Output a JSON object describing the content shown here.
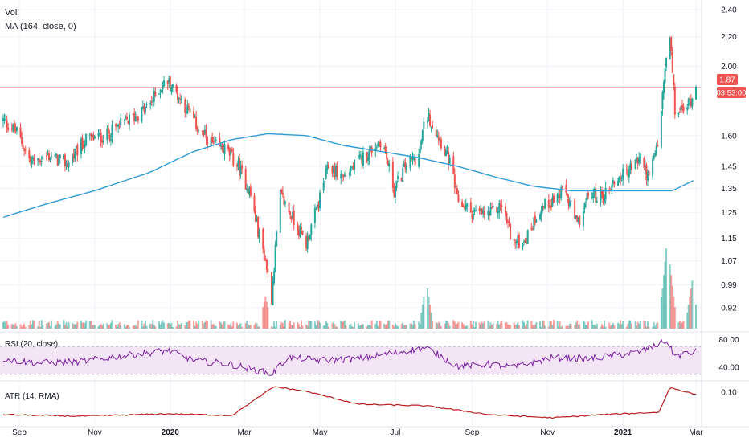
{
  "colors": {
    "up": "#26a69a",
    "down": "#ef5350",
    "ma": "#2e9bd6",
    "rsi": "#7b1fa2",
    "rsi_band": "#f3e5f5",
    "atr": "#b71c1c",
    "price_line": "#ef5350",
    "grid": "#f0f3fa",
    "axis_text": "#131722"
  },
  "legend": {
    "vol": "Vol",
    "ma": "MA (164, close, 0)",
    "rsi": "RSI (20, close)",
    "atr": "ATR (14, RMA)"
  },
  "price_badge": {
    "price": "1.87",
    "countdown": "03:53:00"
  },
  "chart_data": [
    {
      "type": "candlestick",
      "pane": "price",
      "y_ticks": [
        "2.40",
        "2.20",
        "2.00",
        "1.60",
        "1.45",
        "1.35",
        "1.25",
        "1.15",
        "1.07",
        "0.99",
        "0.92"
      ],
      "y_scale": "log",
      "ylim": [
        0.88,
        2.45
      ],
      "x_ticks": [
        "Sep",
        "Nov",
        "2020",
        "Mar",
        "May",
        "Jul",
        "Sep",
        "Nov",
        "2021",
        "Mar"
      ],
      "x_tick_dates": [
        "2019-09",
        "2019-11",
        "2020-01",
        "2020-03",
        "2020-05",
        "2020-07",
        "2020-09",
        "2020-11",
        "2021-01",
        "2021-03"
      ],
      "last_price": 1.87,
      "close_path": [
        [
          "2019-08-19",
          1.68
        ],
        [
          "2019-08-30",
          1.62
        ],
        [
          "2019-09-10",
          1.47
        ],
        [
          "2019-09-25",
          1.5
        ],
        [
          "2019-10-10",
          1.46
        ],
        [
          "2019-10-25",
          1.58
        ],
        [
          "2019-11-10",
          1.6
        ],
        [
          "2019-11-25",
          1.67
        ],
        [
          "2019-12-05",
          1.71
        ],
        [
          "2019-12-15",
          1.76
        ],
        [
          "2019-12-23",
          1.86
        ],
        [
          "2019-12-30",
          1.91
        ],
        [
          "2020-01-15",
          1.74
        ],
        [
          "2020-01-25",
          1.62
        ],
        [
          "2020-02-05",
          1.55
        ],
        [
          "2020-02-15",
          1.53
        ],
        [
          "2020-02-25",
          1.45
        ],
        [
          "2020-03-05",
          1.34
        ],
        [
          "2020-03-12",
          1.18
        ],
        [
          "2020-03-18",
          1.07
        ],
        [
          "2020-03-23",
          0.95
        ],
        [
          "2020-03-30",
          1.32
        ],
        [
          "2020-04-10",
          1.22
        ],
        [
          "2020-04-20",
          1.13
        ],
        [
          "2020-04-30",
          1.29
        ],
        [
          "2020-05-08",
          1.45
        ],
        [
          "2020-05-20",
          1.4
        ],
        [
          "2020-06-01",
          1.47
        ],
        [
          "2020-06-10",
          1.52
        ],
        [
          "2020-06-20",
          1.58
        ],
        [
          "2020-06-30",
          1.34
        ],
        [
          "2020-07-10",
          1.46
        ],
        [
          "2020-07-20",
          1.5
        ],
        [
          "2020-07-26",
          1.72
        ],
        [
          "2020-08-05",
          1.6
        ],
        [
          "2020-08-15",
          1.45
        ],
        [
          "2020-08-20",
          1.3
        ],
        [
          "2020-09-01",
          1.25
        ],
        [
          "2020-09-15",
          1.24
        ],
        [
          "2020-09-25",
          1.28
        ],
        [
          "2020-10-05",
          1.13
        ],
        [
          "2020-10-15",
          1.15
        ],
        [
          "2020-10-25",
          1.26
        ],
        [
          "2020-11-05",
          1.3
        ],
        [
          "2020-11-15",
          1.34
        ],
        [
          "2020-11-25",
          1.2
        ],
        [
          "2020-12-05",
          1.33
        ],
        [
          "2020-12-15",
          1.31
        ],
        [
          "2020-12-25",
          1.38
        ],
        [
          "2021-01-05",
          1.43
        ],
        [
          "2021-01-15",
          1.49
        ],
        [
          "2021-01-22",
          1.39
        ],
        [
          "2021-01-30",
          1.58
        ],
        [
          "2021-02-05",
          2.05
        ],
        [
          "2021-02-08",
          2.18
        ],
        [
          "2021-02-12",
          1.73
        ],
        [
          "2021-02-20",
          1.74
        ],
        [
          "2021-02-25",
          1.8
        ],
        [
          "2021-03-01",
          1.87
        ]
      ],
      "ma_path": [
        [
          "2019-08-19",
          1.23
        ],
        [
          "2019-09-20",
          1.28
        ],
        [
          "2019-11-01",
          1.34
        ],
        [
          "2019-12-15",
          1.42
        ],
        [
          "2020-01-20",
          1.52
        ],
        [
          "2020-02-20",
          1.58
        ],
        [
          "2020-03-20",
          1.61
        ],
        [
          "2020-04-20",
          1.6
        ],
        [
          "2020-05-20",
          1.55
        ],
        [
          "2020-06-20",
          1.52
        ],
        [
          "2020-07-20",
          1.49
        ],
        [
          "2020-08-20",
          1.45
        ],
        [
          "2020-09-20",
          1.4
        ],
        [
          "2020-10-20",
          1.36
        ],
        [
          "2020-11-20",
          1.34
        ],
        [
          "2020-12-20",
          1.34
        ],
        [
          "2021-01-20",
          1.34
        ],
        [
          "2021-02-10",
          1.34
        ],
        [
          "2021-03-01",
          1.39
        ]
      ]
    },
    {
      "type": "bar",
      "pane": "volume",
      "spikes": [
        [
          "2020-03-18",
          0.4
        ],
        [
          "2020-07-26",
          0.6
        ],
        [
          "2021-02-03",
          0.6
        ],
        [
          "2021-02-05",
          1.0
        ],
        [
          "2021-02-08",
          0.8
        ],
        [
          "2021-02-26",
          0.6
        ]
      ]
    },
    {
      "type": "line",
      "pane": "rsi",
      "y_ticks": [
        "80.00",
        "40.00"
      ],
      "band": [
        30,
        70
      ],
      "ylim": [
        25,
        85
      ],
      "values_path": [
        [
          "2019-08-19",
          52
        ],
        [
          "2019-09-15",
          46
        ],
        [
          "2019-10-20",
          48
        ],
        [
          "2019-12-01",
          58
        ],
        [
          "2019-12-30",
          64
        ],
        [
          "2020-01-20",
          50
        ],
        [
          "2020-02-20",
          44
        ],
        [
          "2020-03-23",
          30
        ],
        [
          "2020-04-05",
          54
        ],
        [
          "2020-05-01",
          50
        ],
        [
          "2020-06-01",
          52
        ],
        [
          "2020-07-26",
          68
        ],
        [
          "2020-08-20",
          42
        ],
        [
          "2020-09-15",
          44
        ],
        [
          "2020-10-05",
          40
        ],
        [
          "2020-11-05",
          54
        ],
        [
          "2020-12-05",
          52
        ],
        [
          "2021-01-15",
          62
        ],
        [
          "2021-02-05",
          78
        ],
        [
          "2021-02-12",
          56
        ],
        [
          "2021-03-01",
          62
        ]
      ]
    },
    {
      "type": "line",
      "pane": "atr",
      "y_ticks": [
        "0.10"
      ],
      "ylim": [
        0.02,
        0.12
      ],
      "values_path": [
        [
          "2019-08-19",
          0.044
        ],
        [
          "2019-10-20",
          0.04
        ],
        [
          "2019-12-30",
          0.046
        ],
        [
          "2020-02-20",
          0.042
        ],
        [
          "2020-03-25",
          0.114
        ],
        [
          "2020-04-20",
          0.102
        ],
        [
          "2020-06-01",
          0.07
        ],
        [
          "2020-07-26",
          0.066
        ],
        [
          "2020-09-15",
          0.044
        ],
        [
          "2020-11-05",
          0.036
        ],
        [
          "2020-12-15",
          0.044
        ],
        [
          "2021-01-30",
          0.05
        ],
        [
          "2021-02-08",
          0.112
        ],
        [
          "2021-03-01",
          0.094
        ]
      ]
    }
  ]
}
